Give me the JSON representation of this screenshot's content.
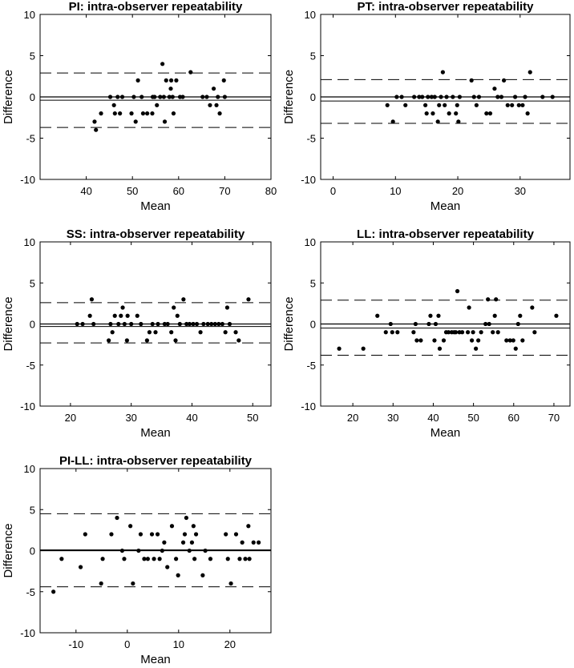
{
  "chart_data": [
    {
      "type": "scatter",
      "title": "PI: intra-observer repeatability",
      "xlabel": "Mean",
      "ylabel": "Difference",
      "xlim": [
        30,
        80
      ],
      "ylim": [
        -10,
        10
      ],
      "xticks": [
        40,
        50,
        60,
        70,
        80
      ],
      "yticks": [
        -10,
        -5,
        0,
        5,
        10
      ],
      "xtick_labels": [
        "40",
        "50",
        "60",
        "70",
        "80"
      ],
      "ytick_labels": [
        "-10",
        "-5",
        "0",
        "5",
        "10"
      ],
      "mean_diff": -0.4,
      "upper_loa": 2.9,
      "lower_loa": -3.7,
      "points": [
        [
          41.8,
          -3
        ],
        [
          42.1,
          -4
        ],
        [
          43.2,
          -2
        ],
        [
          45.2,
          0
        ],
        [
          46.0,
          -1
        ],
        [
          46.2,
          -2
        ],
        [
          46.8,
          0
        ],
        [
          47.3,
          -2
        ],
        [
          47.8,
          0
        ],
        [
          49.8,
          -2
        ],
        [
          50.3,
          0
        ],
        [
          50.7,
          -3
        ],
        [
          51.2,
          2
        ],
        [
          52.0,
          0
        ],
        [
          52.3,
          -2
        ],
        [
          53.2,
          -2
        ],
        [
          54.3,
          -2
        ],
        [
          54.4,
          0
        ],
        [
          54.8,
          0
        ],
        [
          55.3,
          -1
        ],
        [
          56.0,
          0
        ],
        [
          56.5,
          4
        ],
        [
          56.8,
          0
        ],
        [
          57.0,
          -3
        ],
        [
          57.3,
          2
        ],
        [
          58.0,
          0
        ],
        [
          58.3,
          1
        ],
        [
          58.4,
          2
        ],
        [
          58.7,
          0
        ],
        [
          58.9,
          -2
        ],
        [
          59.5,
          2
        ],
        [
          60.3,
          0
        ],
        [
          60.9,
          0
        ],
        [
          62.6,
          3
        ],
        [
          65.2,
          0
        ],
        [
          66.1,
          0
        ],
        [
          66.8,
          -1
        ],
        [
          67.6,
          1
        ],
        [
          68.2,
          -1
        ],
        [
          68.5,
          0
        ],
        [
          68.9,
          -2
        ],
        [
          69.8,
          2
        ],
        [
          70.0,
          0
        ]
      ]
    },
    {
      "type": "scatter",
      "title": "PT: intra-observer repeatability",
      "xlabel": "Mean",
      "ylabel": "Difference",
      "xlim": [
        -2,
        38
      ],
      "ylim": [
        -10,
        10
      ],
      "xticks": [
        0,
        10,
        20,
        30
      ],
      "yticks": [
        -10,
        -5,
        0,
        5,
        10
      ],
      "xtick_labels": [
        "0",
        "10",
        "20",
        "30"
      ],
      "ytick_labels": [
        "-10",
        "-5",
        "0",
        "5",
        "10"
      ],
      "mean_diff": -0.5,
      "upper_loa": 2.1,
      "lower_loa": -3.2,
      "points": [
        [
          8.7,
          -1
        ],
        [
          9.6,
          -3
        ],
        [
          10.2,
          0
        ],
        [
          11.0,
          0
        ],
        [
          11.6,
          -1
        ],
        [
          13.0,
          0
        ],
        [
          13.8,
          0
        ],
        [
          14.3,
          0
        ],
        [
          14.8,
          -1
        ],
        [
          15.0,
          -2
        ],
        [
          15.2,
          0
        ],
        [
          15.8,
          0
        ],
        [
          16.0,
          -2
        ],
        [
          16.3,
          0
        ],
        [
          16.8,
          -3
        ],
        [
          17.0,
          -1
        ],
        [
          17.3,
          0
        ],
        [
          17.6,
          3
        ],
        [
          17.9,
          -1
        ],
        [
          18.2,
          0
        ],
        [
          18.6,
          -2
        ],
        [
          19.2,
          0
        ],
        [
          19.7,
          -2
        ],
        [
          19.9,
          -1
        ],
        [
          20.1,
          -3
        ],
        [
          20.3,
          0
        ],
        [
          22.2,
          2
        ],
        [
          22.6,
          0
        ],
        [
          23.0,
          -1
        ],
        [
          23.4,
          0
        ],
        [
          24.6,
          -2
        ],
        [
          25.2,
          -2
        ],
        [
          25.9,
          1
        ],
        [
          26.4,
          0
        ],
        [
          27.0,
          0
        ],
        [
          27.4,
          2
        ],
        [
          28.0,
          -1
        ],
        [
          28.7,
          -1
        ],
        [
          29.2,
          0
        ],
        [
          29.8,
          -1
        ],
        [
          30.4,
          -1
        ],
        [
          30.8,
          0
        ],
        [
          31.2,
          -2
        ],
        [
          31.6,
          3
        ],
        [
          33.6,
          0
        ],
        [
          35.2,
          0
        ]
      ]
    },
    {
      "type": "scatter",
      "title": "SS: intra-observer repeatability",
      "xlabel": "Mean",
      "ylabel": "Difference",
      "xlim": [
        15,
        53
      ],
      "ylim": [
        -10,
        10
      ],
      "xticks": [
        20,
        30,
        40,
        50
      ],
      "yticks": [
        -10,
        -5,
        0,
        5,
        10
      ],
      "xtick_labels": [
        "20",
        "30",
        "40",
        "50"
      ],
      "ytick_labels": [
        "-10",
        "-5",
        "0",
        "5",
        "10"
      ],
      "mean_diff": -0.3,
      "upper_loa": 2.6,
      "lower_loa": -2.3,
      "points": [
        [
          21.1,
          0
        ],
        [
          22.0,
          0
        ],
        [
          23.2,
          1
        ],
        [
          23.5,
          3
        ],
        [
          23.8,
          0
        ],
        [
          26.3,
          -2
        ],
        [
          26.6,
          0
        ],
        [
          26.9,
          -1
        ],
        [
          27.3,
          1
        ],
        [
          27.9,
          0
        ],
        [
          28.3,
          1
        ],
        [
          28.6,
          2
        ],
        [
          28.9,
          0
        ],
        [
          29.3,
          -2
        ],
        [
          29.4,
          1
        ],
        [
          30.0,
          0
        ],
        [
          31.0,
          1
        ],
        [
          31.6,
          0
        ],
        [
          32.6,
          -2
        ],
        [
          33.0,
          -1
        ],
        [
          33.5,
          0
        ],
        [
          34.0,
          -1
        ],
        [
          34.4,
          0
        ],
        [
          35.5,
          0
        ],
        [
          36.0,
          0
        ],
        [
          36.6,
          -1
        ],
        [
          37.0,
          2
        ],
        [
          37.3,
          -2
        ],
        [
          37.6,
          1
        ],
        [
          38.0,
          0
        ],
        [
          38.6,
          3
        ],
        [
          39.1,
          0
        ],
        [
          39.6,
          0
        ],
        [
          40.2,
          0
        ],
        [
          40.8,
          0
        ],
        [
          41.4,
          -1
        ],
        [
          41.9,
          0
        ],
        [
          42.6,
          0
        ],
        [
          43.2,
          0
        ],
        [
          43.8,
          0
        ],
        [
          44.4,
          0
        ],
        [
          45.0,
          0
        ],
        [
          45.5,
          -1
        ],
        [
          45.8,
          2
        ],
        [
          46.2,
          0
        ],
        [
          47.2,
          -1
        ],
        [
          47.7,
          -2
        ],
        [
          49.3,
          3
        ]
      ]
    },
    {
      "type": "scatter",
      "title": "LL: intra-observer repeatability",
      "xlabel": "Mean",
      "ylabel": "Difference",
      "xlim": [
        12,
        74
      ],
      "ylim": [
        -10,
        10
      ],
      "xticks": [
        20,
        30,
        40,
        50,
        60,
        70
      ],
      "yticks": [
        -10,
        -5,
        0,
        5,
        10
      ],
      "xtick_labels": [
        "20",
        "30",
        "40",
        "50",
        "60",
        "70"
      ],
      "ytick_labels": [
        "-10",
        "-5",
        "0",
        "5",
        "10"
      ],
      "mean_diff": -0.5,
      "upper_loa": 2.9,
      "lower_loa": -3.8,
      "points": [
        [
          16.6,
          -3
        ],
        [
          22.6,
          -3
        ],
        [
          26.1,
          1
        ],
        [
          28.2,
          -1
        ],
        [
          29.4,
          0
        ],
        [
          29.8,
          -1
        ],
        [
          31.1,
          -1
        ],
        [
          35.1,
          -1
        ],
        [
          35.6,
          0
        ],
        [
          35.9,
          -2
        ],
        [
          36.9,
          -2
        ],
        [
          38.9,
          0
        ],
        [
          39.3,
          1
        ],
        [
          40.3,
          -2
        ],
        [
          40.6,
          0
        ],
        [
          41.3,
          1
        ],
        [
          41.6,
          -3
        ],
        [
          42.6,
          -2
        ],
        [
          43.2,
          -1
        ],
        [
          43.8,
          -1
        ],
        [
          44.6,
          -1
        ],
        [
          45.2,
          -1
        ],
        [
          45.6,
          -1
        ],
        [
          46.0,
          4
        ],
        [
          46.5,
          -1
        ],
        [
          47.2,
          -1
        ],
        [
          48.6,
          -1
        ],
        [
          48.9,
          2
        ],
        [
          49.6,
          -2
        ],
        [
          49.9,
          -1
        ],
        [
          50.6,
          -3
        ],
        [
          51.2,
          -2
        ],
        [
          51.9,
          -1
        ],
        [
          53.0,
          0
        ],
        [
          53.6,
          3
        ],
        [
          53.9,
          0
        ],
        [
          54.8,
          -1
        ],
        [
          55.3,
          1
        ],
        [
          55.6,
          3
        ],
        [
          56.1,
          -1
        ],
        [
          58.2,
          -2
        ],
        [
          59.1,
          -2
        ],
        [
          59.9,
          -2
        ],
        [
          60.5,
          -3
        ],
        [
          61.1,
          0
        ],
        [
          61.6,
          1
        ],
        [
          62.2,
          -2
        ],
        [
          64.6,
          2
        ],
        [
          65.2,
          -1
        ],
        [
          70.6,
          1
        ]
      ]
    },
    {
      "type": "scatter",
      "title": "PI-LL: intra-observer repeatability",
      "xlabel": "Mean",
      "ylabel": "Difference",
      "xlim": [
        -17,
        28
      ],
      "ylim": [
        -10,
        10
      ],
      "xticks": [
        -10,
        0,
        10,
        20
      ],
      "yticks": [
        -10,
        -5,
        0,
        5,
        10
      ],
      "xtick_labels": [
        "-10",
        "0",
        "10",
        "20"
      ],
      "ytick_labels": [
        "-10",
        "-5",
        "0",
        "5",
        "10"
      ],
      "mean_diff": 0.1,
      "upper_loa": 4.5,
      "lower_loa": -4.4,
      "points": [
        [
          -14.4,
          -5
        ],
        [
          -12.8,
          -1
        ],
        [
          -9.1,
          -2
        ],
        [
          -8.2,
          2
        ],
        [
          -5.1,
          -4
        ],
        [
          -4.8,
          -1
        ],
        [
          -3.1,
          2
        ],
        [
          -2.0,
          4
        ],
        [
          -1.0,
          0
        ],
        [
          -0.6,
          -1
        ],
        [
          0.6,
          3
        ],
        [
          1.1,
          -4
        ],
        [
          2.2,
          0
        ],
        [
          2.6,
          2
        ],
        [
          3.3,
          -1
        ],
        [
          4.0,
          -1
        ],
        [
          4.8,
          2
        ],
        [
          5.2,
          -1
        ],
        [
          5.9,
          2
        ],
        [
          6.3,
          -1
        ],
        [
          6.8,
          0
        ],
        [
          7.2,
          1
        ],
        [
          7.8,
          -2
        ],
        [
          8.7,
          3
        ],
        [
          9.5,
          -1
        ],
        [
          9.9,
          -3
        ],
        [
          10.9,
          1
        ],
        [
          11.5,
          4
        ],
        [
          11.2,
          2
        ],
        [
          12.1,
          0
        ],
        [
          12.6,
          1
        ],
        [
          12.9,
          3
        ],
        [
          13.1,
          -1
        ],
        [
          13.4,
          2
        ],
        [
          14.7,
          -3
        ],
        [
          15.2,
          0
        ],
        [
          16.2,
          -1
        ],
        [
          19.2,
          2
        ],
        [
          19.6,
          -1
        ],
        [
          20.2,
          -4
        ],
        [
          21.2,
          2
        ],
        [
          21.9,
          -1
        ],
        [
          22.4,
          1
        ],
        [
          23.0,
          -1
        ],
        [
          23.6,
          3
        ],
        [
          23.8,
          -1
        ],
        [
          24.6,
          1
        ],
        [
          25.6,
          1
        ]
      ]
    }
  ]
}
